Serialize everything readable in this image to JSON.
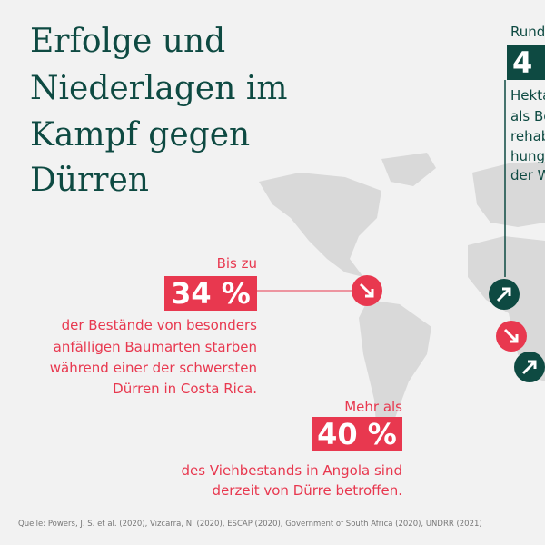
{
  "header": {
    "title": [
      "Erfolge und",
      "Niederlagen im",
      "Kampf gegen",
      "Dürren"
    ]
  },
  "callouts": [
    {
      "intro": "Bis zu",
      "figure": "34 %",
      "text": [
        "der Bestände von besonders",
        "anfälligen Baumarten starben",
        "während einer der schwersten",
        "Dürren in Costa Rica."
      ]
    },
    {
      "intro": "Mehr als",
      "figure": "40 %",
      "text": [
        "des Viehbestands in Angola sind",
        "derzeit von Dürre betroffen."
      ]
    }
  ],
  "right_callout": {
    "intro": "Rund",
    "figure": "4",
    "text": [
      "Hekta",
      "als Be",
      "rehab",
      "hung",
      "der W"
    ]
  },
  "source": "Quelle: Powers, J. S. et al. (2020), Vizcarra, N. (2020), ESCAP (2020), Government of South Africa (2020), UNDRR (2021)"
}
